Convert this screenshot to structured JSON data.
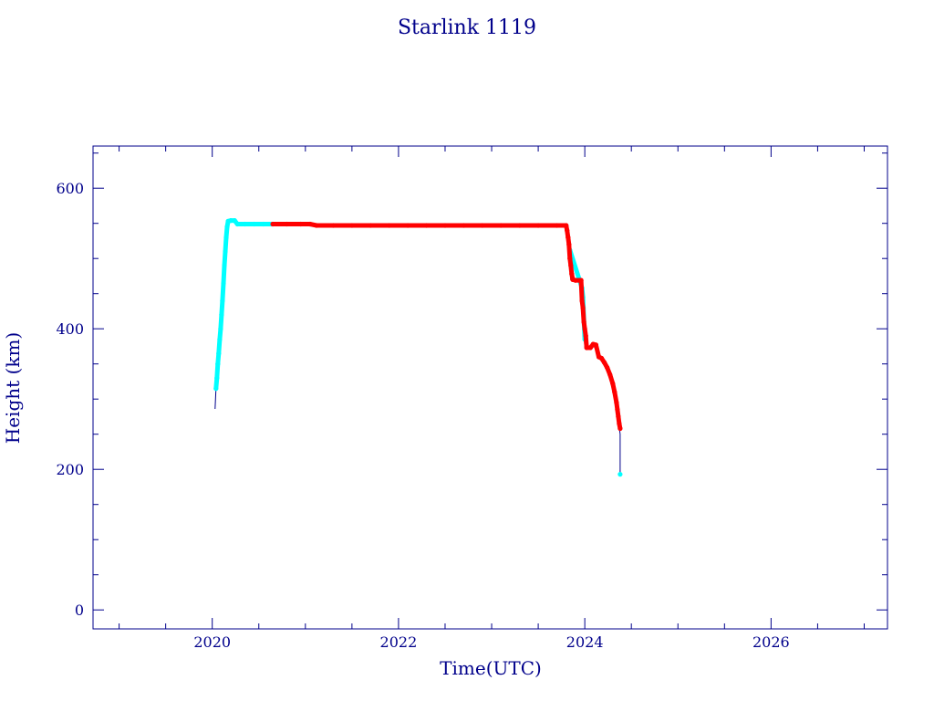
{
  "chart_data": {
    "type": "scatter",
    "title": "Starlink 1119",
    "xlabel": "Time(UTC)",
    "ylabel": "Height (km)",
    "xlim": [
      2018.72,
      2027.25
    ],
    "ylim": [
      -27,
      660
    ],
    "x_ticks": [
      2020,
      2022,
      2024,
      2026
    ],
    "y_ticks": [
      0,
      200,
      400,
      600
    ],
    "grid": false,
    "colors": {
      "axis": "#00008b",
      "orbit_raising": "#00ffff",
      "on_station": "#ff0000",
      "trace": "#00008b"
    },
    "series": [
      {
        "color_key": "trace",
        "style": "line",
        "points": [
          [
            2020.03,
            286
          ],
          [
            2020.04,
            315
          ],
          [
            2020.07,
            360
          ],
          [
            2020.1,
            420
          ],
          [
            2020.13,
            490
          ],
          [
            2020.16,
            553
          ],
          [
            2020.24,
            554
          ],
          [
            2020.3,
            549
          ],
          [
            2023.8,
            548
          ],
          [
            2023.83,
            510
          ],
          [
            2023.85,
            470
          ],
          [
            2023.95,
            468
          ],
          [
            2023.98,
            420
          ],
          [
            2024.0,
            375
          ],
          [
            2024.05,
            373
          ],
          [
            2024.1,
            375
          ],
          [
            2024.15,
            360
          ],
          [
            2024.22,
            350
          ],
          [
            2024.3,
            320
          ],
          [
            2024.35,
            280
          ],
          [
            2024.38,
            250
          ],
          [
            2024.38,
            193
          ]
        ]
      },
      {
        "color_key": "orbit_raising",
        "style": "points",
        "points": [
          [
            2020.04,
            315
          ],
          [
            2020.05,
            330
          ],
          [
            2020.06,
            350
          ],
          [
            2020.07,
            365
          ],
          [
            2020.08,
            385
          ],
          [
            2020.09,
            400
          ],
          [
            2020.1,
            420
          ],
          [
            2020.11,
            440
          ],
          [
            2020.12,
            465
          ],
          [
            2020.13,
            490
          ],
          [
            2020.14,
            510
          ],
          [
            2020.15,
            530
          ],
          [
            2020.16,
            545
          ],
          [
            2020.17,
            553
          ],
          [
            2020.2,
            554
          ],
          [
            2020.24,
            554
          ],
          [
            2020.27,
            549
          ],
          [
            2020.35,
            549
          ],
          [
            2020.45,
            549
          ],
          [
            2020.55,
            549
          ],
          [
            2020.63,
            549
          ],
          [
            2023.84,
            512
          ],
          [
            2023.97,
            458
          ],
          [
            2023.98,
            445
          ],
          [
            2024.0,
            385
          ],
          [
            2024.38,
            193
          ]
        ]
      },
      {
        "color_key": "on_station",
        "style": "points",
        "points": [
          [
            2020.65,
            549
          ],
          [
            2020.8,
            549
          ],
          [
            2020.95,
            549
          ],
          [
            2021.05,
            549
          ],
          [
            2021.12,
            547
          ],
          [
            2021.3,
            547
          ],
          [
            2021.5,
            547
          ],
          [
            2021.7,
            547
          ],
          [
            2021.9,
            547
          ],
          [
            2022.1,
            547
          ],
          [
            2022.3,
            547
          ],
          [
            2022.5,
            547
          ],
          [
            2022.7,
            547
          ],
          [
            2022.9,
            547
          ],
          [
            2023.1,
            547
          ],
          [
            2023.3,
            547
          ],
          [
            2023.5,
            547
          ],
          [
            2023.7,
            547
          ],
          [
            2023.8,
            547
          ],
          [
            2023.81,
            540
          ],
          [
            2023.82,
            530
          ],
          [
            2023.83,
            520
          ],
          [
            2023.84,
            500
          ],
          [
            2023.85,
            490
          ],
          [
            2023.86,
            478
          ],
          [
            2023.87,
            470
          ],
          [
            2023.9,
            469
          ],
          [
            2023.94,
            469
          ],
          [
            2023.96,
            469
          ],
          [
            2023.97,
            440
          ],
          [
            2023.98,
            430
          ],
          [
            2023.99,
            410
          ],
          [
            2024.0,
            400
          ],
          [
            2024.01,
            390
          ],
          [
            2024.02,
            373
          ],
          [
            2024.06,
            373
          ],
          [
            2024.09,
            378
          ],
          [
            2024.12,
            377
          ],
          [
            2024.15,
            360
          ],
          [
            2024.18,
            358
          ],
          [
            2024.21,
            352
          ],
          [
            2024.24,
            345
          ],
          [
            2024.27,
            335
          ],
          [
            2024.3,
            322
          ],
          [
            2024.32,
            310
          ],
          [
            2024.34,
            295
          ],
          [
            2024.35,
            285
          ],
          [
            2024.36,
            275
          ],
          [
            2024.37,
            265
          ],
          [
            2024.38,
            258
          ]
        ]
      }
    ]
  }
}
